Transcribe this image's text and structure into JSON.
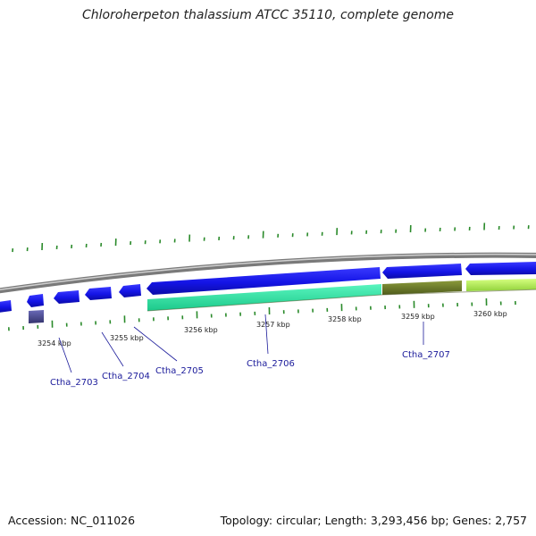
{
  "title": "Chloroherpeton thalassium ATCC 35110, complete genome",
  "footer": {
    "accession": "Accession: NC_011026",
    "summary": "Topology: circular; Length: 3,293,456 bp; Genes: 2,757"
  },
  "scale": {
    "labels": [
      {
        "text": "3254 kbp",
        "kbp": 3254
      },
      {
        "text": "3255 kbp",
        "kbp": 3255
      },
      {
        "text": "3256 kbp",
        "kbp": 3256
      },
      {
        "text": "3257 kbp",
        "kbp": 3257
      },
      {
        "text": "3258 kbp",
        "kbp": 3258
      },
      {
        "text": "3259 kbp",
        "kbp": 3259
      },
      {
        "text": "3260 kbp",
        "kbp": 3260
      }
    ]
  },
  "genes": [
    {
      "label": "Ctha_2703"
    },
    {
      "label": "Ctha_2704"
    },
    {
      "label": "Ctha_2705"
    },
    {
      "label": "Ctha_2706"
    },
    {
      "label": "Ctha_2707"
    }
  ],
  "colors": {
    "backbone": "#8a8a8a",
    "cds": "#1f1fe0",
    "gene_label": "#1a1a9a",
    "tick": "#2a8a2a",
    "cog_teal": "#2fe6a4",
    "cog_olive": "#6b7a2a",
    "cog_lime": "#b8f060",
    "cog_purple": "#4a4a9a"
  }
}
